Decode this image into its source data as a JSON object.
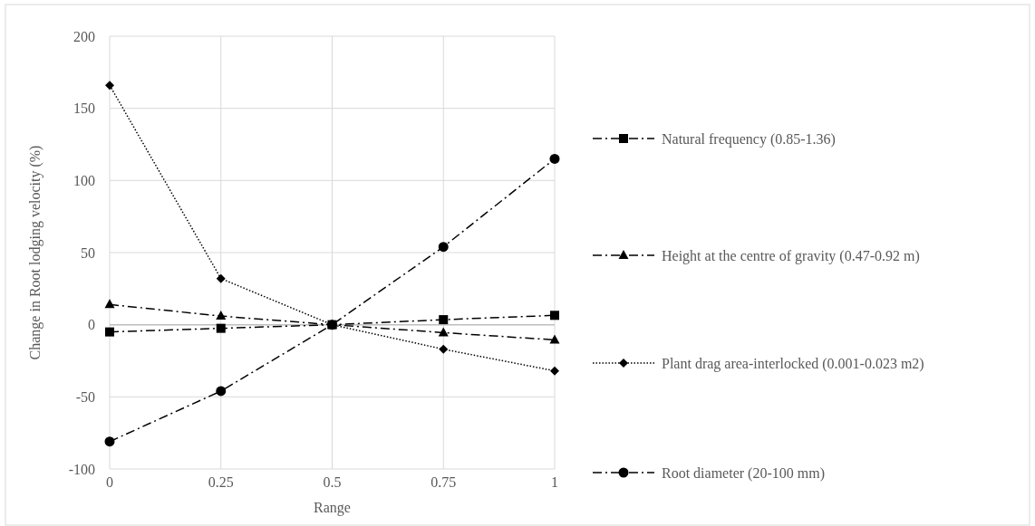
{
  "chart_data": {
    "type": "line",
    "xlabel": "Range",
    "ylabel": "Change in Root lodging velocity (%)",
    "x": [
      0,
      0.25,
      0.5,
      0.75,
      1
    ],
    "xlim": [
      0,
      1
    ],
    "xticks": [
      0,
      0.25,
      0.5,
      0.75,
      1
    ],
    "ylim": [
      -100,
      200
    ],
    "yticks": [
      -100,
      -50,
      0,
      50,
      100,
      150,
      200
    ],
    "grid": true,
    "legend": "right",
    "series": [
      {
        "name": "Natural frequency (0.85-1.36)",
        "color": "#000000",
        "marker": "square",
        "line_style": "dashed",
        "values": [
          -5,
          -2.5,
          0,
          3.5,
          6.5
        ]
      },
      {
        "name": "Height at the centre of gravity (0.47-0.92 m)",
        "color": "#000000",
        "marker": "triangle",
        "line_style": "dashed",
        "values": [
          14,
          6,
          0,
          -5.5,
          -10.5
        ]
      },
      {
        "name": "Plant drag area-interlocked (0.001-0.023 m2)",
        "color": "#000000",
        "marker": "diamond",
        "line_style": "dotted",
        "values": [
          166,
          32,
          0,
          -17,
          -32
        ]
      },
      {
        "name": "Root diameter (20-100 mm)",
        "color": "#000000",
        "marker": "circle",
        "line_style": "dashed",
        "values": [
          -81,
          -46,
          0,
          54,
          115
        ]
      }
    ]
  }
}
